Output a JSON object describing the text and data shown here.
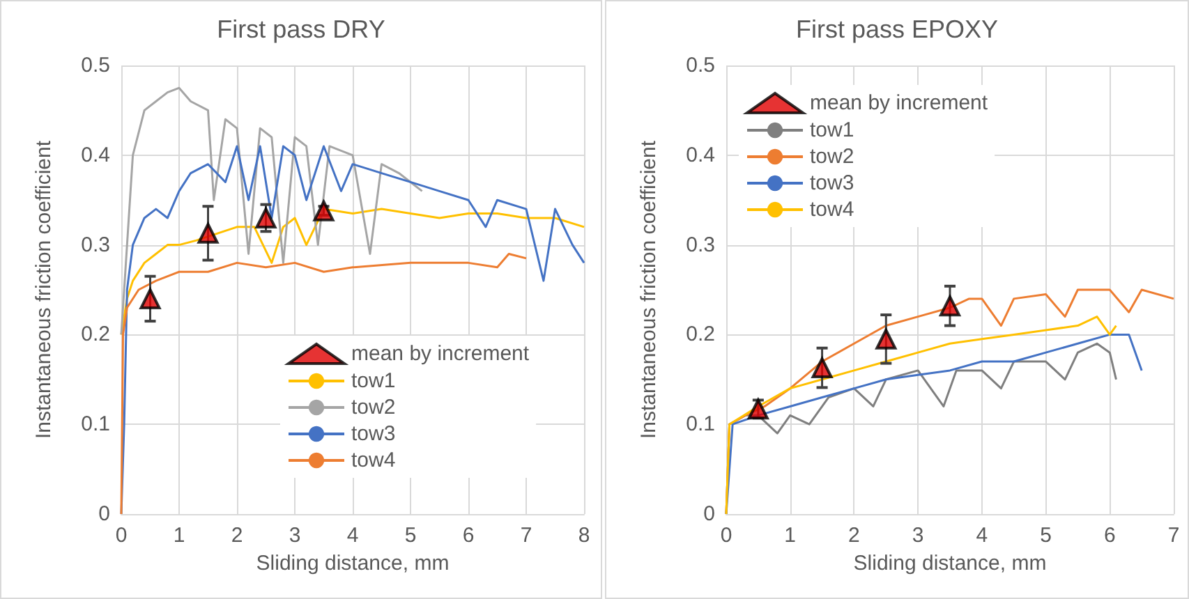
{
  "chart_data": [
    {
      "type": "line",
      "title": "First pass DRY",
      "xlabel": "Sliding distance, mm",
      "ylabel": "Instantaneous friction coefficient",
      "xlim": [
        0,
        8
      ],
      "xticks": [
        0,
        1,
        2,
        3,
        4,
        5,
        6,
        7,
        8
      ],
      "ylim": [
        0,
        0.5
      ],
      "yticks": [
        0,
        0.1,
        0.2,
        0.3,
        0.4,
        0.5
      ],
      "grid": true,
      "legend": "bottom right",
      "marker": "none",
      "series": [
        {
          "name": "mean by increment",
          "type": "scatter",
          "marker": "triangle",
          "color": "#e00000",
          "x": [
            0.5,
            1.5,
            2.5,
            3.5
          ],
          "values": [
            0.24,
            0.313,
            0.33,
            0.338
          ],
          "errors": [
            0.025,
            0.03,
            0.015,
            0.005
          ]
        },
        {
          "name": "tow1",
          "color": "#ffc000",
          "x": [
            0,
            0.1,
            0.2,
            0.4,
            0.6,
            0.8,
            1,
            1.3,
            2,
            2.3,
            2.6,
            2.8,
            3,
            3.2,
            3.5,
            4,
            4.5,
            5,
            5.5,
            6,
            6.5,
            7,
            7.5,
            8
          ],
          "values": [
            0.2,
            0.24,
            0.26,
            0.28,
            0.29,
            0.3,
            0.3,
            0.305,
            0.32,
            0.32,
            0.28,
            0.32,
            0.33,
            0.3,
            0.34,
            0.335,
            0.34,
            0.335,
            0.33,
            0.335,
            0.335,
            0.33,
            0.33,
            0.32
          ]
        },
        {
          "name": "tow2",
          "color": "#a5a5a5",
          "x": [
            0,
            0.1,
            0.2,
            0.4,
            0.6,
            0.8,
            1,
            1.2,
            1.5,
            1.6,
            1.8,
            2,
            2.2,
            2.4,
            2.6,
            2.8,
            3,
            3.2,
            3.4,
            3.6,
            4,
            4.3,
            4.5,
            4.8,
            5,
            5.2
          ],
          "values": [
            0.2,
            0.3,
            0.4,
            0.45,
            0.46,
            0.47,
            0.475,
            0.46,
            0.45,
            0.35,
            0.44,
            0.43,
            0.29,
            0.43,
            0.42,
            0.28,
            0.42,
            0.41,
            0.3,
            0.41,
            0.4,
            0.29,
            0.39,
            0.38,
            0.37,
            0.36
          ]
        },
        {
          "name": "tow3",
          "color": "#4472c4",
          "x": [
            0,
            0.05,
            0.1,
            0.2,
            0.4,
            0.6,
            0.8,
            1,
            1.2,
            1.5,
            1.8,
            2,
            2.2,
            2.4,
            2.6,
            2.8,
            3,
            3.2,
            3.5,
            3.8,
            4,
            4.5,
            5,
            5.5,
            6,
            6.3,
            6.5,
            7,
            7.3,
            7.5,
            7.8,
            8
          ],
          "values": [
            0,
            0.1,
            0.25,
            0.3,
            0.33,
            0.34,
            0.33,
            0.36,
            0.38,
            0.39,
            0.37,
            0.41,
            0.35,
            0.41,
            0.33,
            0.41,
            0.4,
            0.35,
            0.41,
            0.36,
            0.39,
            0.38,
            0.37,
            0.36,
            0.35,
            0.32,
            0.35,
            0.34,
            0.26,
            0.34,
            0.3,
            0.28
          ]
        },
        {
          "name": "tow4",
          "color": "#ed7d31",
          "x": [
            0,
            0.03,
            0.1,
            0.3,
            0.6,
            1,
            1.5,
            2,
            2.5,
            3,
            3.5,
            4,
            5,
            6,
            6.5,
            6.7,
            7
          ],
          "values": [
            0,
            0.2,
            0.23,
            0.25,
            0.26,
            0.27,
            0.27,
            0.28,
            0.275,
            0.28,
            0.27,
            0.275,
            0.28,
            0.28,
            0.275,
            0.29,
            0.285
          ]
        }
      ]
    },
    {
      "type": "line",
      "title": "First pass EPOXY",
      "xlabel": "Sliding distance, mm",
      "ylabel": "Instantaneous friction coefficient",
      "xlim": [
        0,
        7
      ],
      "xticks": [
        0,
        1,
        2,
        3,
        4,
        5,
        6,
        7
      ],
      "ylim": [
        0,
        0.5
      ],
      "yticks": [
        0,
        0.1,
        0.2,
        0.3,
        0.4,
        0.5
      ],
      "grid": true,
      "legend": "top left",
      "marker": "none",
      "series": [
        {
          "name": "mean by increment",
          "type": "scatter",
          "marker": "triangle",
          "color": "#e00000",
          "x": [
            0.5,
            1.5,
            2.5,
            3.5
          ],
          "values": [
            0.117,
            0.163,
            0.195,
            0.232
          ],
          "errors": [
            0.01,
            0.022,
            0.027,
            0.022
          ]
        },
        {
          "name": "tow1",
          "color": "#7f7f7f",
          "x": [
            0,
            0.05,
            0.3,
            0.5,
            0.8,
            1,
            1.3,
            1.6,
            2,
            2.3,
            2.5,
            3,
            3.4,
            3.6,
            4,
            4.3,
            4.5,
            5,
            5.3,
            5.5,
            5.8,
            6,
            6.1
          ],
          "values": [
            0,
            0.1,
            0.11,
            0.11,
            0.09,
            0.11,
            0.1,
            0.13,
            0.14,
            0.12,
            0.15,
            0.16,
            0.12,
            0.16,
            0.16,
            0.14,
            0.17,
            0.17,
            0.15,
            0.18,
            0.19,
            0.18,
            0.15
          ]
        },
        {
          "name": "tow2",
          "color": "#ed7d31",
          "x": [
            0,
            0.05,
            0.3,
            0.6,
            1,
            1.5,
            2,
            2.5,
            3,
            3.5,
            3.8,
            4,
            4.3,
            4.5,
            5,
            5.3,
            5.5,
            6,
            6.3,
            6.5,
            7
          ],
          "values": [
            0,
            0.1,
            0.11,
            0.12,
            0.14,
            0.17,
            0.19,
            0.21,
            0.22,
            0.23,
            0.24,
            0.24,
            0.21,
            0.24,
            0.245,
            0.22,
            0.25,
            0.25,
            0.225,
            0.25,
            0.24
          ]
        },
        {
          "name": "tow3",
          "color": "#4472c4",
          "x": [
            0,
            0.1,
            0.5,
            1,
            1.5,
            2,
            2.5,
            3,
            3.5,
            4,
            4.5,
            5,
            5.5,
            6,
            6.3,
            6.5
          ],
          "values": [
            0,
            0.1,
            0.11,
            0.12,
            0.13,
            0.14,
            0.15,
            0.155,
            0.16,
            0.17,
            0.17,
            0.18,
            0.19,
            0.2,
            0.2,
            0.16
          ]
        },
        {
          "name": "tow4",
          "color": "#ffc000",
          "x": [
            0,
            0.05,
            0.5,
            1,
            1.5,
            2,
            2.5,
            3,
            3.5,
            4,
            4.5,
            5,
            5.5,
            5.8,
            6,
            6.1
          ],
          "values": [
            0,
            0.1,
            0.12,
            0.14,
            0.15,
            0.16,
            0.17,
            0.18,
            0.19,
            0.195,
            0.2,
            0.205,
            0.21,
            0.22,
            0.2,
            0.21
          ]
        }
      ]
    }
  ]
}
